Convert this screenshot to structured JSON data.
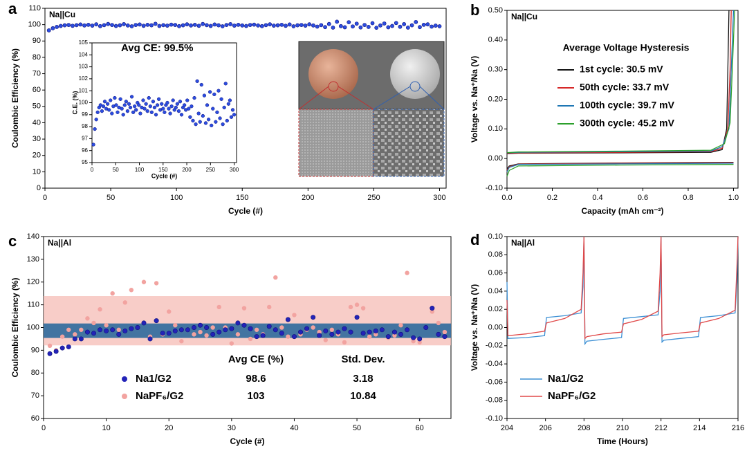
{
  "chart_data": [
    {
      "type": "scatter",
      "panel": "a",
      "xlabel": "Cycle (#)",
      "ylabel": "Coulombic Efficiency (%)",
      "annotations": [
        "Na||Cu",
        "Avg CE: 99.5%"
      ],
      "xlim": [
        0,
        305
      ],
      "ylim": [
        0,
        110
      ],
      "xticks": [
        0,
        50,
        100,
        150,
        200,
        250,
        300
      ],
      "yticks": [
        0,
        10,
        20,
        30,
        40,
        50,
        60,
        70,
        80,
        90,
        100,
        110
      ],
      "x": [
        3,
        6,
        9,
        12,
        15,
        18,
        21,
        24,
        27,
        30,
        33,
        36,
        39,
        42,
        45,
        48,
        51,
        54,
        57,
        60,
        63,
        66,
        69,
        72,
        75,
        78,
        81,
        84,
        87,
        90,
        93,
        96,
        99,
        102,
        105,
        108,
        111,
        114,
        117,
        120,
        123,
        126,
        129,
        132,
        135,
        138,
        141,
        144,
        147,
        150,
        153,
        156,
        159,
        162,
        165,
        168,
        171,
        174,
        177,
        180,
        183,
        186,
        189,
        192,
        195,
        198,
        201,
        204,
        207,
        210,
        213,
        216,
        219,
        222,
        225,
        228,
        231,
        234,
        237,
        240,
        243,
        246,
        249,
        252,
        255,
        258,
        261,
        264,
        267,
        270,
        273,
        276,
        279,
        282,
        285,
        288,
        291,
        294,
        297,
        300
      ],
      "series": [
        {
          "color": "#2b4de0",
          "values": [
            96.5,
            97.8,
            98.6,
            99.2,
            99.6,
            99.8,
            99.3,
            99.7,
            100.1,
            99.5,
            99.9,
            99.4,
            100.2,
            99.1,
            99.7,
            100.4,
            99.8,
            99.2,
            99.6,
            100.3,
            99.5,
            99.0,
            99.8,
            100.1,
            99.3,
            99.9,
            99.6,
            100.5,
            99.2,
            99.7,
            99.4,
            100.0,
            99.8,
            99.1,
            99.6,
            100.2,
            99.5,
            99.9,
            99.3,
            100.4,
            99.7,
            99.2,
            100.1,
            99.6,
            99.0,
            99.8,
            100.3,
            99.4,
            99.9,
            99.5,
            99.2,
            99.8,
            100.0,
            99.5,
            99.1,
            99.7,
            100.2,
            99.4,
            99.6,
            99.9,
            99.3,
            100.1,
            99.0,
            99.6,
            99.8,
            99.4,
            100.2,
            99.5,
            98.8,
            99.7,
            98.5,
            100.4,
            98.2,
            101.8,
            99.1,
            98.4,
            101.5,
            98.9,
            100.6,
            98.3,
            99.8,
            98.6,
            100.9,
            98.1,
            99.5,
            100.7,
            98.4,
            99.2,
            101.0,
            98.7,
            100.3,
            98.2,
            99.6,
            101.6,
            98.5,
            99.9,
            100.2,
            98.8,
            99.4,
            99.0
          ]
        }
      ],
      "inset": {
        "xlabel": "Cycle (#)",
        "ylabel": "C.E. (%)",
        "xlim": [
          0,
          305
        ],
        "ylim": [
          95,
          105
        ],
        "xticks": [
          0,
          50,
          100,
          150,
          200,
          250,
          300
        ],
        "yticks": [
          95,
          96,
          97,
          98,
          99,
          100,
          101,
          102,
          103,
          104,
          105
        ]
      }
    },
    {
      "type": "line",
      "panel": "b",
      "xlabel": "Capacity (mAh cm⁻²)",
      "ylabel": "Voltage vs. Na⁺/Na (V)",
      "annotations": [
        "Na||Cu"
      ],
      "legend_title": "Average Voltage Hysteresis",
      "xlim": [
        0,
        1.02
      ],
      "ylim": [
        -0.1,
        0.5
      ],
      "xticks": [
        {
          "value": 0,
          "label": "0.0"
        },
        0.2,
        0.4,
        0.6,
        0.8,
        {
          "value": 1,
          "label": "1.0"
        }
      ],
      "yticks": [
        {
          "value": -0.1,
          "label": "-0.10"
        },
        {
          "value": 0,
          "label": "0.00"
        },
        {
          "value": 0.1,
          "label": "0.10"
        },
        {
          "value": 0.2,
          "label": "0.20"
        },
        {
          "value": 0.3,
          "label": "0.30"
        },
        {
          "value": 0.4,
          "label": "0.40"
        },
        {
          "value": 0.5,
          "label": "0.50"
        }
      ],
      "series": [
        {
          "name": "1st cycle: 30.5 mV",
          "color": "#111111",
          "x": [
            0,
            0.01,
            0.05,
            0.5,
            1.0,
            null,
            0,
            0.05,
            0.5,
            0.9,
            0.95,
            0.97,
            0.975,
            0.98
          ],
          "values": [
            -0.035,
            -0.025,
            -0.018,
            -0.015,
            -0.013,
            null,
            0.016,
            0.018,
            0.019,
            0.021,
            0.03,
            0.1,
            0.3,
            0.5
          ]
        },
        {
          "name": "50th cycle: 33.7 mV",
          "color": "#d62728",
          "x": [
            0,
            0.01,
            0.05,
            0.5,
            1.0,
            null,
            0,
            0.05,
            0.5,
            0.9,
            0.95,
            0.975,
            0.985,
            0.99
          ],
          "values": [
            -0.04,
            -0.028,
            -0.019,
            -0.016,
            -0.014,
            null,
            0.017,
            0.019,
            0.021,
            0.023,
            0.035,
            0.1,
            0.3,
            0.5
          ]
        },
        {
          "name": "100th cycle: 39.7 mV",
          "color": "#1f77b4",
          "x": [
            0,
            0.01,
            0.05,
            0.5,
            1.0,
            null,
            0,
            0.05,
            0.5,
            0.9,
            0.95,
            0.98,
            0.99,
            1.0
          ],
          "values": [
            -0.045,
            -0.03,
            -0.02,
            -0.018,
            -0.016,
            null,
            0.019,
            0.021,
            0.023,
            0.025,
            0.04,
            0.1,
            0.3,
            0.5
          ]
        },
        {
          "name": "300th cycle: 45.2 mV",
          "color": "#2ca02c",
          "x": [
            0,
            0.01,
            0.05,
            0.5,
            1.0,
            null,
            0,
            0.05,
            0.5,
            0.9,
            0.96,
            0.985,
            0.995,
            1.005
          ],
          "values": [
            -0.06,
            -0.04,
            -0.025,
            -0.022,
            -0.02,
            null,
            0.02,
            0.022,
            0.025,
            0.028,
            0.05,
            0.12,
            0.3,
            0.5
          ]
        }
      ]
    },
    {
      "type": "scatter",
      "panel": "c",
      "xlabel": "Cycle (#)",
      "ylabel": "Coulombic Efficiency (%)",
      "annotations": [
        "Na||Al"
      ],
      "table_headers": [
        "Avg CE (%)",
        "Std. Dev."
      ],
      "xlim": [
        0,
        65
      ],
      "ylim": [
        60,
        140
      ],
      "xticks": [
        0,
        10,
        20,
        30,
        40,
        50,
        60
      ],
      "yticks": [
        60,
        70,
        80,
        90,
        100,
        110,
        120,
        130,
        140
      ],
      "x": [
        1,
        2,
        3,
        4,
        5,
        6,
        7,
        8,
        9,
        10,
        11,
        12,
        13,
        14,
        15,
        16,
        17,
        18,
        19,
        20,
        21,
        22,
        23,
        24,
        25,
        26,
        27,
        28,
        29,
        30,
        31,
        32,
        33,
        34,
        35,
        36,
        37,
        38,
        39,
        40,
        41,
        42,
        43,
        44,
        45,
        46,
        47,
        48,
        49,
        50,
        51,
        52,
        53,
        54,
        55,
        56,
        57,
        58,
        59,
        60,
        61,
        62,
        63,
        64
      ],
      "series": [
        {
          "name": "Na1/G2",
          "color": "#2323b8",
          "band_color": "#2d6a9c",
          "avg": 98.6,
          "std": 3.18,
          "values": [
            88.5,
            89.5,
            91,
            91.5,
            95,
            95,
            98,
            97.5,
            99,
            98.5,
            99,
            97,
            98.5,
            99.5,
            100,
            102,
            95,
            103,
            97.5,
            97.5,
            98.5,
            99,
            99,
            100,
            101,
            100,
            97,
            98,
            99,
            99.5,
            102,
            101,
            99.5,
            96,
            96.5,
            100.5,
            99,
            97.5,
            103.5,
            96,
            98,
            99.5,
            104.5,
            96.5,
            98.5,
            97,
            98,
            99.5,
            98,
            104.5,
            97.5,
            98,
            98.5,
            99,
            96,
            98,
            97,
            99,
            95.5,
            95,
            100,
            108.5,
            97,
            96
          ]
        },
        {
          "name": "NaPF₆/G2",
          "color": "#f2a3a0",
          "band_color": "#f6bcb6",
          "avg": 103,
          "std": 10.84,
          "values": [
            92,
            90,
            96,
            99,
            97,
            99,
            104,
            102,
            108,
            101,
            115,
            99,
            111,
            116.5,
            100,
            120,
            96,
            119.5,
            97,
            107,
            101,
            94,
            99,
            97,
            98,
            96.5,
            100,
            109,
            100,
            93,
            97,
            108.5,
            95,
            99,
            97,
            109,
            122,
            100,
            96,
            105.5,
            97,
            99,
            100,
            98,
            94.5,
            99,
            97,
            93.5,
            109,
            110,
            108.5,
            96,
            97,
            99,
            95.5,
            96.5,
            101,
            124,
            94,
            93.5,
            100,
            107,
            102,
            98
          ]
        }
      ]
    },
    {
      "type": "line",
      "panel": "d",
      "xlabel": "Time (Hours)",
      "ylabel": "Voltage vs. Na⁺/Na (V)",
      "annotations": [
        "Na||Al"
      ],
      "legend": "lower left",
      "xlim": [
        204,
        216
      ],
      "ylim": [
        -0.1,
        0.1
      ],
      "xticks": [
        204,
        206,
        208,
        210,
        212,
        214,
        216
      ],
      "yticks": [
        {
          "value": -0.1,
          "label": "-0.10"
        },
        -0.08,
        -0.06,
        -0.04,
        -0.02,
        {
          "value": 0,
          "label": "0.00"
        },
        0.02,
        0.04,
        0.06,
        0.08,
        {
          "value": 0.1,
          "label": "0.10"
        }
      ],
      "x": [
        204,
        204.05,
        205,
        205.95,
        206.05,
        207,
        207.85,
        207.95,
        208.0,
        208.05,
        208.15,
        209,
        209.95,
        210.05,
        211,
        211.85,
        211.95,
        212.0,
        212.05,
        212.15,
        213,
        213.95,
        214.05,
        215,
        215.85,
        215.95,
        216.0
      ],
      "series": [
        {
          "name": "Na1/G2",
          "color": "#3b8fd4",
          "values": [
            0.05,
            -0.012,
            -0.011,
            -0.009,
            0.011,
            0.013,
            0.016,
            0.045,
            0.1,
            -0.018,
            -0.015,
            -0.013,
            -0.011,
            0.01,
            0.012,
            0.014,
            0.04,
            0.1,
            -0.016,
            -0.014,
            -0.012,
            -0.01,
            0.011,
            0.013,
            0.016,
            0.05,
            0.1
          ]
        },
        {
          "name": "NaPF₆/G2",
          "color": "#e04848",
          "values": [
            0.03,
            -0.009,
            -0.007,
            -0.004,
            0.005,
            0.01,
            0.02,
            0.06,
            0.1,
            -0.012,
            -0.01,
            -0.007,
            -0.005,
            0.004,
            0.009,
            0.018,
            0.06,
            0.1,
            -0.01,
            -0.008,
            -0.006,
            -0.004,
            0.005,
            0.01,
            0.019,
            0.07,
            0.1
          ]
        }
      ]
    }
  ]
}
